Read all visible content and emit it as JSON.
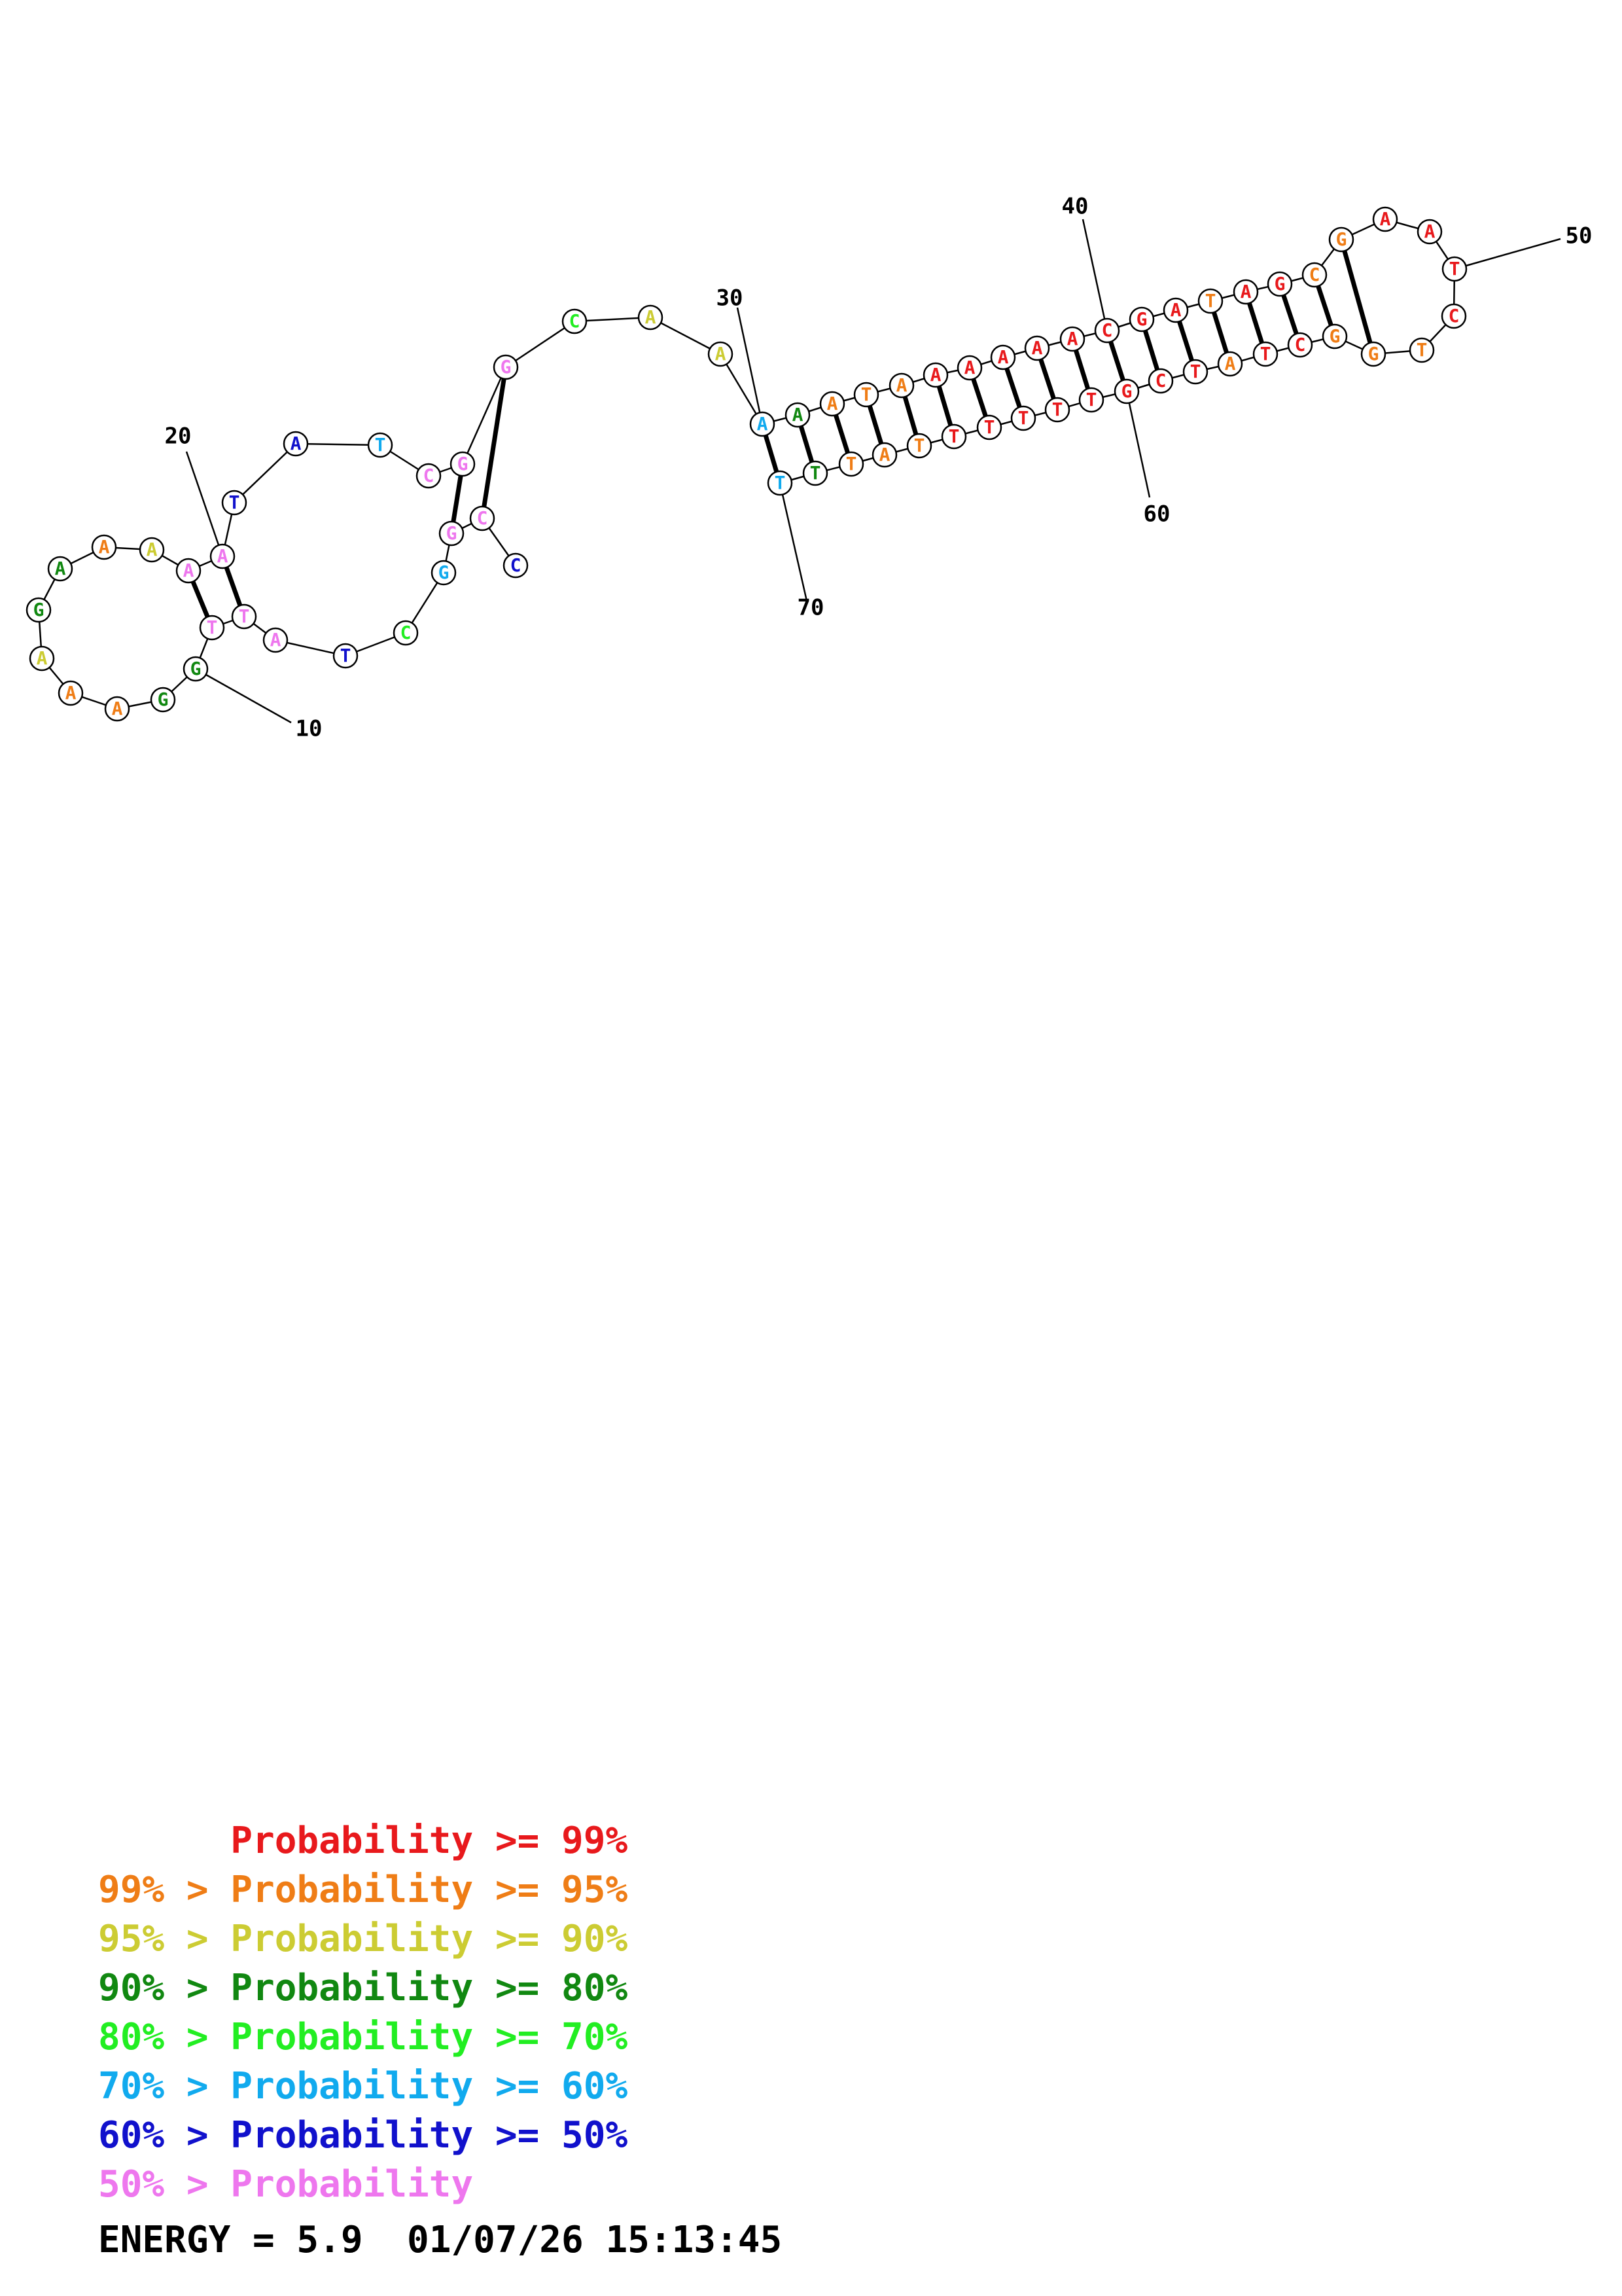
{
  "colors": {
    "p99": "#e8191c",
    "p95": "#ef7d16",
    "p90": "#cccc33",
    "p80": "#118811",
    "p70": "#22ee22",
    "p60": "#11aaee",
    "p50": "#1111cc",
    "plow": "#ee77ee"
  },
  "sequence": [
    {
      "n": 1,
      "b": "C",
      "p": "p50"
    },
    {
      "n": 2,
      "b": "C",
      "p": "plow"
    },
    {
      "n": 3,
      "b": "G",
      "p": "plow"
    },
    {
      "n": 4,
      "b": "G",
      "p": "p60"
    },
    {
      "n": 5,
      "b": "C",
      "p": "p70"
    },
    {
      "n": 6,
      "b": "T",
      "p": "p50"
    },
    {
      "n": 7,
      "b": "A",
      "p": "plow"
    },
    {
      "n": 8,
      "b": "T",
      "p": "plow"
    },
    {
      "n": 9,
      "b": "T",
      "p": "plow"
    },
    {
      "n": 10,
      "b": "G",
      "p": "p80"
    },
    {
      "n": 11,
      "b": "G",
      "p": "p80"
    },
    {
      "n": 12,
      "b": "A",
      "p": "p95"
    },
    {
      "n": 13,
      "b": "A",
      "p": "p95"
    },
    {
      "n": 14,
      "b": "A",
      "p": "p90"
    },
    {
      "n": 15,
      "b": "G",
      "p": "p80"
    },
    {
      "n": 16,
      "b": "A",
      "p": "p80"
    },
    {
      "n": 17,
      "b": "A",
      "p": "p95"
    },
    {
      "n": 18,
      "b": "A",
      "p": "p90"
    },
    {
      "n": 19,
      "b": "A",
      "p": "plow"
    },
    {
      "n": 20,
      "b": "A",
      "p": "plow"
    },
    {
      "n": 21,
      "b": "T",
      "p": "p50"
    },
    {
      "n": 22,
      "b": "A",
      "p": "p50"
    },
    {
      "n": 23,
      "b": "T",
      "p": "p60"
    },
    {
      "n": 24,
      "b": "C",
      "p": "plow"
    },
    {
      "n": 25,
      "b": "G",
      "p": "plow"
    },
    {
      "n": 26,
      "b": "G",
      "p": "plow"
    },
    {
      "n": 27,
      "b": "C",
      "p": "p70"
    },
    {
      "n": 28,
      "b": "A",
      "p": "p90"
    },
    {
      "n": 29,
      "b": "A",
      "p": "p90"
    },
    {
      "n": 30,
      "b": "A",
      "p": "p60"
    },
    {
      "n": 31,
      "b": "A",
      "p": "p80"
    },
    {
      "n": 32,
      "b": "A",
      "p": "p95"
    },
    {
      "n": 33,
      "b": "T",
      "p": "p95"
    },
    {
      "n": 34,
      "b": "A",
      "p": "p95"
    },
    {
      "n": 35,
      "b": "A",
      "p": "p99"
    },
    {
      "n": 36,
      "b": "A",
      "p": "p99"
    },
    {
      "n": 37,
      "b": "A",
      "p": "p99"
    },
    {
      "n": 38,
      "b": "A",
      "p": "p99"
    },
    {
      "n": 39,
      "b": "A",
      "p": "p99"
    },
    {
      "n": 40,
      "b": "C",
      "p": "p99"
    },
    {
      "n": 41,
      "b": "G",
      "p": "p99"
    },
    {
      "n": 42,
      "b": "A",
      "p": "p99"
    },
    {
      "n": 43,
      "b": "T",
      "p": "p95"
    },
    {
      "n": 44,
      "b": "A",
      "p": "p99"
    },
    {
      "n": 45,
      "b": "G",
      "p": "p99"
    },
    {
      "n": 46,
      "b": "C",
      "p": "p95"
    },
    {
      "n": 47,
      "b": "G",
      "p": "p95"
    },
    {
      "n": 48,
      "b": "A",
      "p": "p99"
    },
    {
      "n": 49,
      "b": "A",
      "p": "p99"
    },
    {
      "n": 50,
      "b": "T",
      "p": "p99"
    },
    {
      "n": 51,
      "b": "C",
      "p": "p99"
    },
    {
      "n": 52,
      "b": "T",
      "p": "p95"
    },
    {
      "n": 53,
      "b": "G",
      "p": "p95"
    },
    {
      "n": 54,
      "b": "G",
      "p": "p95"
    },
    {
      "n": 55,
      "b": "C",
      "p": "p99"
    },
    {
      "n": 56,
      "b": "T",
      "p": "p99"
    },
    {
      "n": 57,
      "b": "A",
      "p": "p95"
    },
    {
      "n": 58,
      "b": "T",
      "p": "p99"
    },
    {
      "n": 59,
      "b": "C",
      "p": "p99"
    },
    {
      "n": 60,
      "b": "G",
      "p": "p99"
    },
    {
      "n": 61,
      "b": "T",
      "p": "p99"
    },
    {
      "n": 62,
      "b": "T",
      "p": "p99"
    },
    {
      "n": 63,
      "b": "T",
      "p": "p99"
    },
    {
      "n": 64,
      "b": "T",
      "p": "p99"
    },
    {
      "n": 65,
      "b": "T",
      "p": "p99"
    },
    {
      "n": 66,
      "b": "T",
      "p": "p95"
    },
    {
      "n": 67,
      "b": "A",
      "p": "p95"
    },
    {
      "n": 68,
      "b": "T",
      "p": "p95"
    },
    {
      "n": 69,
      "b": "T",
      "p": "p80"
    },
    {
      "n": 70,
      "b": "T",
      "p": "p60"
    }
  ],
  "pairs": [
    [
      2,
      26
    ],
    [
      3,
      25
    ],
    [
      8,
      20
    ],
    [
      9,
      19
    ],
    [
      30,
      70
    ],
    [
      31,
      69
    ],
    [
      32,
      68
    ],
    [
      33,
      67
    ],
    [
      34,
      66
    ],
    [
      35,
      65
    ],
    [
      36,
      64
    ],
    [
      37,
      63
    ],
    [
      38,
      62
    ],
    [
      39,
      61
    ],
    [
      40,
      60
    ],
    [
      41,
      59
    ],
    [
      42,
      58
    ],
    [
      43,
      57
    ],
    [
      44,
      56
    ],
    [
      45,
      55
    ],
    [
      46,
      54
    ],
    [
      47,
      53
    ]
  ],
  "index_labels": [
    {
      "n": 10,
      "text": "10"
    },
    {
      "n": 20,
      "text": "20"
    },
    {
      "n": 30,
      "text": "30"
    },
    {
      "n": 40,
      "text": "40"
    },
    {
      "n": 50,
      "text": "50"
    },
    {
      "n": 60,
      "text": "60"
    },
    {
      "n": 70,
      "text": "70"
    }
  ],
  "legend": [
    {
      "prefix": "",
      "text": "Probability >= 99%",
      "p": "p99"
    },
    {
      "prefix": "99% > ",
      "text": "Probability >= 95%",
      "p": "p95"
    },
    {
      "prefix": "95% > ",
      "text": "Probability >= 90%",
      "p": "p90"
    },
    {
      "prefix": "90% > ",
      "text": "Probability >= 80%",
      "p": "p80"
    },
    {
      "prefix": "80% > ",
      "text": "Probability >= 70%",
      "p": "p70"
    },
    {
      "prefix": "70% > ",
      "text": "Probability >= 60%",
      "p": "p60"
    },
    {
      "prefix": "60% > ",
      "text": "Probability >= 50%",
      "p": "p50"
    },
    {
      "prefix": "50% > ",
      "text": "Probability",
      "p": "plow"
    }
  ],
  "energy_line": "ENERGY = 5.9  01/07/26 15:13:45"
}
